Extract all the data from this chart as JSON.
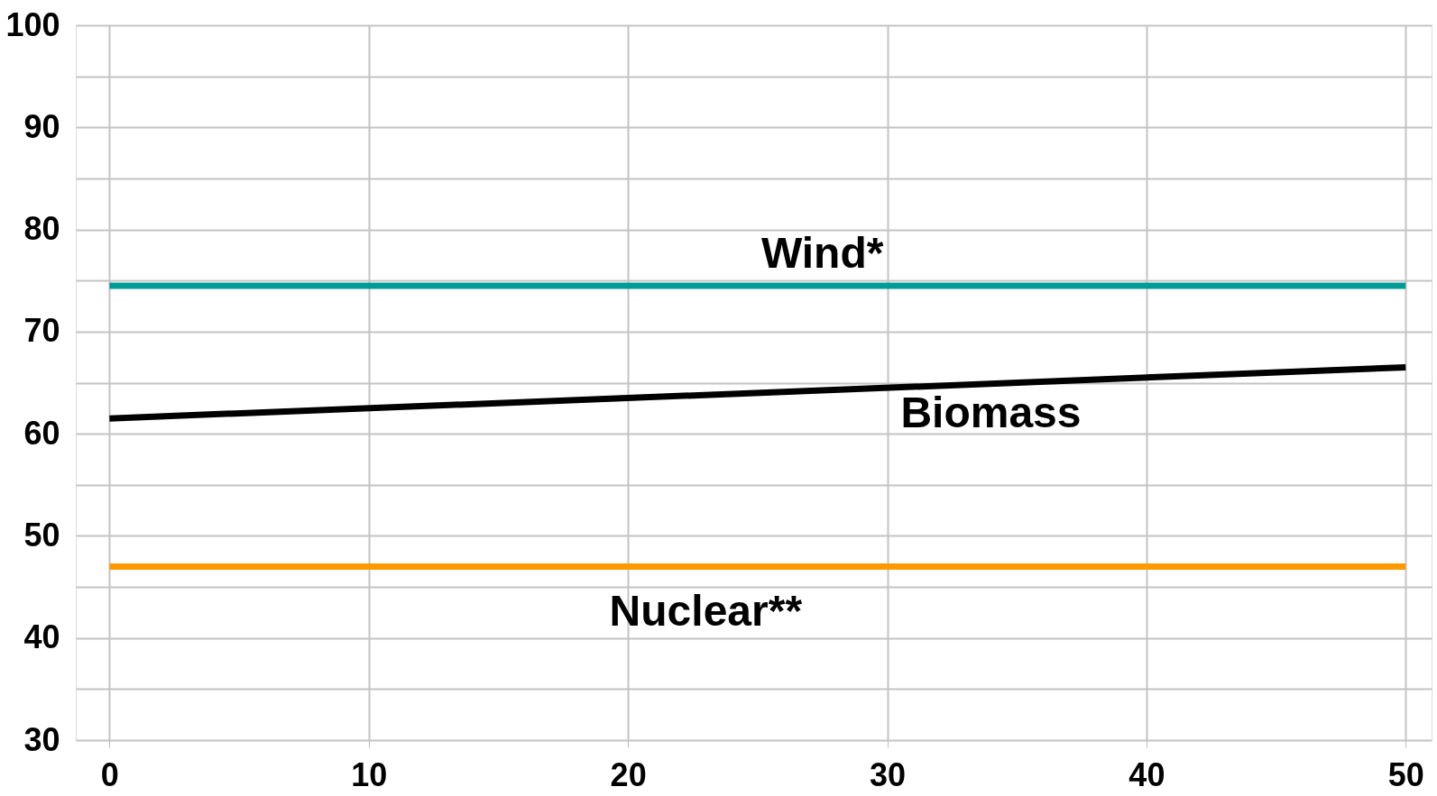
{
  "chart_data": {
    "type": "line",
    "x": [
      0,
      50
    ],
    "series": [
      {
        "name": "Wind*",
        "color": "#009b95",
        "values": [
          74.5,
          74.5
        ]
      },
      {
        "name": "Biomass",
        "color": "#000000",
        "values": [
          61.5,
          66.5
        ]
      },
      {
        "name": "Nuclear**",
        "color": "#ff9900",
        "values": [
          47,
          47
        ]
      }
    ],
    "xlim": [
      -1.3,
      51
    ],
    "ylim": [
      30,
      100
    ],
    "xticks": [
      0,
      10,
      20,
      30,
      40,
      50
    ],
    "yticks": [
      30,
      {
        "value": 35,
        "label": null
      },
      40,
      {
        "value": 45,
        "label": null
      },
      50,
      {
        "value": 55,
        "label": null
      },
      60,
      {
        "value": 65,
        "label": null
      },
      70,
      {
        "value": 75,
        "label": null
      },
      80,
      {
        "value": 85,
        "label": null
      },
      90,
      {
        "value": 95,
        "label": null
      },
      100
    ],
    "grid": true,
    "legend": false,
    "marker": "none",
    "line_style": "solid"
  }
}
